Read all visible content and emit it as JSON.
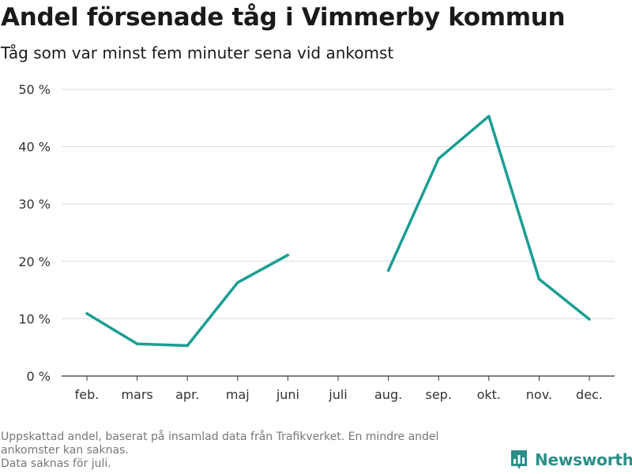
{
  "header": {
    "title": "Andel försenade tåg i Vimmerby kommun",
    "subtitle": "Tåg som var minst fem minuter sena vid ankomst"
  },
  "chart_data": {
    "type": "line",
    "title": "Andel försenade tåg i Vimmerby kommun",
    "subtitle": "Tåg som var minst fem minuter sena vid ankomst",
    "categories": [
      "feb.",
      "mars",
      "apr.",
      "maj",
      "juni",
      "juli",
      "aug.",
      "sep.",
      "okt.",
      "nov.",
      "dec."
    ],
    "series": [
      {
        "name": "Andel försenade tåg",
        "values": [
          10.9,
          5.6,
          5.3,
          16.3,
          21.1,
          null,
          18.4,
          37.9,
          45.3,
          16.9,
          9.9
        ],
        "color": "#1a9e92"
      }
    ],
    "ylim": [
      0,
      50
    ],
    "yticks": [
      0,
      10,
      20,
      30,
      40,
      50
    ],
    "ytick_labels": [
      "0 %",
      "10 %",
      "20 %",
      "30 %",
      "40 %",
      "50 %"
    ],
    "xlabel": "",
    "ylabel": "",
    "grid": true
  },
  "footer": {
    "note_lines": [
      "Uppskattad andel, baserat på insamlad data från Trafikverket. En mindre andel",
      "ankomster kan saknas.",
      "Data saknas för juli."
    ],
    "brand": "Newsworthy",
    "brand_color": "#2a8f87"
  }
}
